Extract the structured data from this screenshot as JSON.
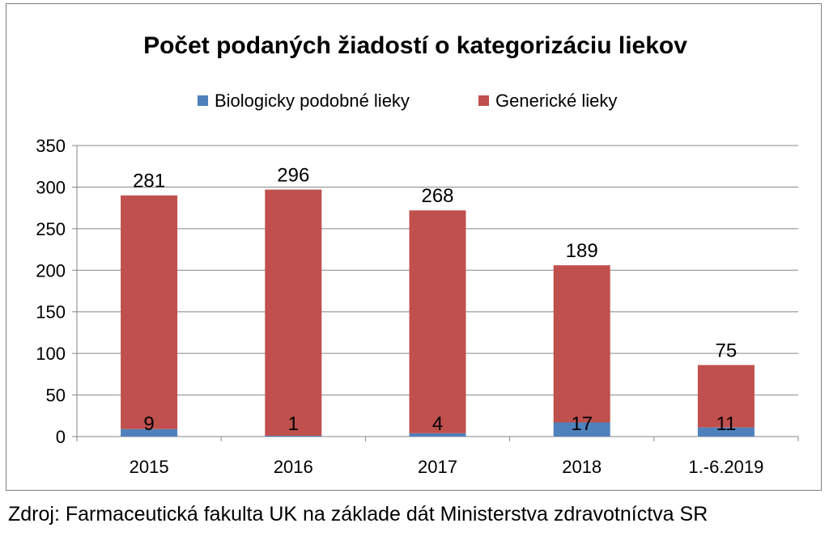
{
  "chart_data": {
    "type": "bar",
    "stacked": true,
    "title": "Počet podaných žiadostí o kategorizáciu liekov",
    "categories": [
      "2015",
      "2016",
      "2017",
      "2018",
      "1.-6.2019"
    ],
    "series": [
      {
        "name": "Biologicky podobné lieky",
        "color": "#4f81bd",
        "values": [
          9,
          1,
          4,
          17,
          11
        ]
      },
      {
        "name": "Generické lieky",
        "color": "#c0504d",
        "values": [
          281,
          296,
          268,
          189,
          75
        ]
      }
    ],
    "ylim": [
      0,
      350
    ],
    "yticks": [
      0,
      50,
      100,
      150,
      200,
      250,
      300,
      350
    ],
    "xlabel": "",
    "ylabel": "",
    "grid": true,
    "legend_position": "top"
  },
  "source": "Zdroj: Farmaceutická fakulta UK na základe dát Ministerstva zdravotníctva SR"
}
